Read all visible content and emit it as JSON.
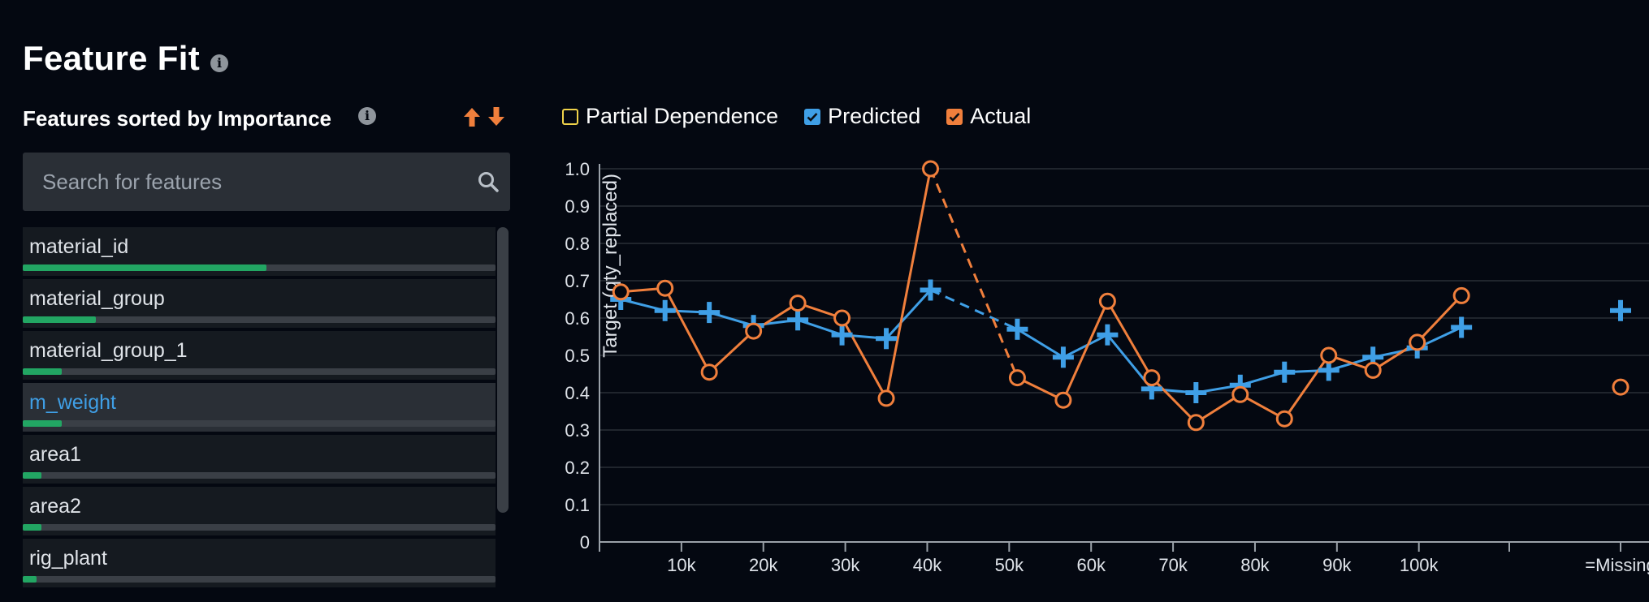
{
  "page": {
    "title": "Feature Fit",
    "panel_title": "Features sorted by Importance"
  },
  "search": {
    "placeholder": "Search for features",
    "value": ""
  },
  "features": [
    {
      "name": "material_id",
      "importance": 0.515,
      "selected": false
    },
    {
      "name": "material_group",
      "importance": 0.155,
      "selected": false
    },
    {
      "name": "material_group_1",
      "importance": 0.082,
      "selected": false
    },
    {
      "name": "m_weight",
      "importance": 0.082,
      "selected": true
    },
    {
      "name": "area1",
      "importance": 0.04,
      "selected": false
    },
    {
      "name": "area2",
      "importance": 0.04,
      "selected": false
    },
    {
      "name": "rig_plant",
      "importance": 0.03,
      "selected": false
    }
  ],
  "legend": [
    {
      "label": "Partial Dependence",
      "checked": false,
      "color": "#f0d34a"
    },
    {
      "label": "Predicted",
      "checked": true,
      "color": "#3f9fe6"
    },
    {
      "label": "Actual",
      "checked": true,
      "color": "#f07f3c"
    }
  ],
  "colors": {
    "accent_orange": "#f07f3c",
    "predicted": "#3f9fe6",
    "actual": "#f07f3c",
    "importance_bar": "#22a663"
  },
  "chart_data": {
    "type": "line",
    "ylabel": "Target (qty_replaced)",
    "ylim": [
      0,
      1.0
    ],
    "yticks": [
      0,
      0.1,
      0.2,
      0.3,
      0.4,
      0.5,
      0.6,
      0.7,
      0.8,
      0.9,
      1.0
    ],
    "ytick_labels": [
      "0",
      "0.1",
      "0.2",
      "0.3",
      "0.4",
      "0.5",
      "0.6",
      "0.7",
      "0.8",
      "0.9",
      "1.0"
    ],
    "xlim": [
      0,
      115000
    ],
    "xticks": [
      10000,
      20000,
      30000,
      40000,
      50000,
      60000,
      70000,
      80000,
      90000,
      100000
    ],
    "xtick_labels": [
      "10k",
      "20k",
      "30k",
      "40k",
      "50k",
      "60k",
      "70k",
      "80k",
      "90k",
      "100k"
    ],
    "missing_label": "=Missing",
    "grid": true,
    "x": [
      2600,
      8000,
      13400,
      18800,
      24200,
      29600,
      35000,
      40400,
      51000,
      56600,
      62000,
      67400,
      72800,
      78200,
      83600,
      89000,
      94400,
      99800,
      105200
    ],
    "series": [
      {
        "name": "Predicted",
        "values": [
          0.65,
          0.62,
          0.615,
          0.58,
          0.595,
          0.555,
          0.545,
          0.675,
          0.57,
          0.495,
          0.555,
          0.41,
          0.4,
          0.42,
          0.455,
          0.46,
          0.495,
          0.52,
          0.575
        ],
        "missing_value": 0.62
      },
      {
        "name": "Actual",
        "values": [
          0.67,
          0.68,
          0.455,
          0.565,
          0.64,
          0.6,
          0.385,
          1.0,
          0.44,
          0.38,
          0.645,
          0.44,
          0.32,
          0.395,
          0.33,
          0.5,
          0.46,
          0.535,
          0.66
        ],
        "missing_value": 0.415
      }
    ],
    "dashed_segment_after_index": 7
  }
}
